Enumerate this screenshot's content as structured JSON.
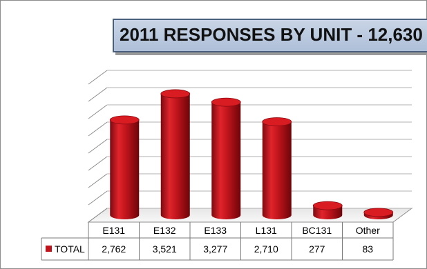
{
  "chart_data": {
    "type": "bar",
    "title": "2011 RESPONSES BY UNIT - 12,630",
    "categories": [
      "E131",
      "E132",
      "E133",
      "L131",
      "BC131",
      "Other"
    ],
    "series": [
      {
        "name": "TOTAL",
        "values": [
          2762,
          3521,
          3277,
          2710,
          277,
          83
        ],
        "labels": [
          "2,762",
          "3,521",
          "3,277",
          "2,710",
          "277",
          "83"
        ]
      }
    ],
    "ylim": [
      0,
      4000
    ],
    "grid": true,
    "three_d": true,
    "data_table": true,
    "bar_color": "#c0141c"
  }
}
